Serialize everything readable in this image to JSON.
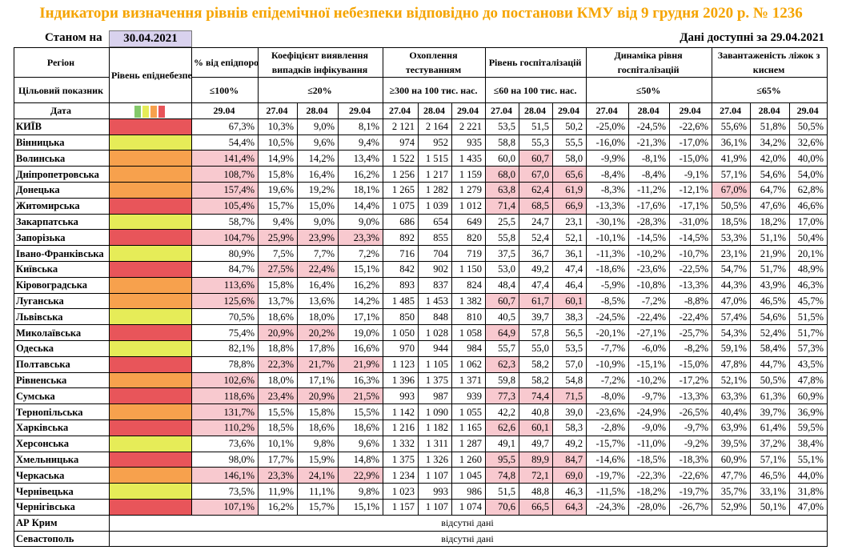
{
  "title": "Індикатори визначення рівнів епідемічної небезпеки відповідно до постанови КМУ від 9 грудня 2020 р. № 1236",
  "state_label": "Станом на",
  "state_date": "30.04.2021",
  "avail_label": "Дані доступні за",
  "avail_date": "29.04.2021",
  "headers": {
    "region": "Регіон",
    "target": "Цільовий показник",
    "date": "Дата",
    "level": "Рівень епіднебезпеки",
    "pct": "% від епідпорогу",
    "coef": "Коефіцієнт виявлення випадків інфікування",
    "test": "Охоплення тестуванням",
    "hosp": "Рівень госпіталізацій",
    "dyn": "Динаміка рівня госпіталізацій",
    "beds": "Завантаженість ліжок з киснем",
    "t_pct": "≤100%",
    "t_coef": "≤20%",
    "t_test": "≥300 на 100 тис. нас.",
    "t_hosp": "≤60 на 100 тис. нас.",
    "t_dyn": "≤50%",
    "t_beds": "≤65%",
    "d_pct": "29.04",
    "dates": [
      "27.04",
      "28.04",
      "29.04"
    ]
  },
  "level_colors": {
    "red": "#e8555a",
    "orange": "#f7a14d",
    "yellow": "#e6ec58",
    "green": "#84c96a"
  },
  "rows": [
    {
      "name": "КИЇВ",
      "level": "red",
      "pct": "67,3%",
      "coef": [
        "10,3%",
        "9,0%",
        "8,1%"
      ],
      "test": [
        "2 121",
        "2 164",
        "2 221"
      ],
      "hosp": [
        "53,5",
        "51,5",
        "50,2"
      ],
      "dyn": [
        "-25,0%",
        "-24,5%",
        "-22,6%"
      ],
      "beds": [
        "55,6%",
        "51,8%",
        "50,5%"
      ]
    },
    {
      "name": "Вінницька",
      "level": "yellow",
      "pct": "54,4%",
      "coef": [
        "10,5%",
        "9,6%",
        "9,4%"
      ],
      "test": [
        "974",
        "952",
        "935"
      ],
      "hosp": [
        "58,8",
        "55,3",
        "55,5"
      ],
      "dyn": [
        "-16,0%",
        "-21,3%",
        "-17,0%"
      ],
      "beds": [
        "36,1%",
        "34,2%",
        "32,6%"
      ]
    },
    {
      "name": "Волинська",
      "level": "orange",
      "pct": "141,4%",
      "coef": [
        "14,9%",
        "14,2%",
        "13,4%"
      ],
      "test": [
        "1 522",
        "1 515",
        "1 435"
      ],
      "hosp": [
        "60,0",
        "60,7",
        "58,0"
      ],
      "dyn": [
        "-9,9%",
        "-8,1%",
        "-15,0%"
      ],
      "beds": [
        "41,9%",
        "42,0%",
        "40,0%"
      ]
    },
    {
      "name": "Дніпропетровська",
      "level": "orange",
      "pct": "108,7%",
      "coef": [
        "15,8%",
        "16,4%",
        "16,2%"
      ],
      "test": [
        "1 256",
        "1 217",
        "1 159"
      ],
      "hosp": [
        "68,0",
        "67,0",
        "65,6"
      ],
      "dyn": [
        "-8,4%",
        "-8,4%",
        "-9,1%"
      ],
      "beds": [
        "57,1%",
        "54,6%",
        "54,0%"
      ]
    },
    {
      "name": "Донецька",
      "level": "orange",
      "pct": "157,4%",
      "coef": [
        "19,6%",
        "19,2%",
        "18,1%"
      ],
      "test": [
        "1 265",
        "1 282",
        "1 279"
      ],
      "hosp": [
        "63,8",
        "62,4",
        "61,9"
      ],
      "dyn": [
        "-8,3%",
        "-11,2%",
        "-12,1%"
      ],
      "beds": [
        "67,0%",
        "64,7%",
        "62,8%"
      ]
    },
    {
      "name": "Житомирська",
      "level": "red",
      "pct": "105,4%",
      "coef": [
        "15,7%",
        "15,0%",
        "14,4%"
      ],
      "test": [
        "1 075",
        "1 039",
        "1 012"
      ],
      "hosp": [
        "71,4",
        "68,5",
        "66,9"
      ],
      "dyn": [
        "-13,3%",
        "-17,6%",
        "-17,1%"
      ],
      "beds": [
        "50,5%",
        "47,6%",
        "46,6%"
      ]
    },
    {
      "name": "Закарпатська",
      "level": "yellow",
      "pct": "58,7%",
      "coef": [
        "9,4%",
        "9,0%",
        "9,0%"
      ],
      "test": [
        "686",
        "654",
        "649"
      ],
      "hosp": [
        "25,5",
        "24,7",
        "23,1"
      ],
      "dyn": [
        "-30,1%",
        "-28,3%",
        "-31,0%"
      ],
      "beds": [
        "18,5%",
        "18,2%",
        "17,0%"
      ]
    },
    {
      "name": "Запорізька",
      "level": "red",
      "pct": "104,7%",
      "coef": [
        "25,9%",
        "23,9%",
        "23,3%"
      ],
      "test": [
        "892",
        "855",
        "820"
      ],
      "hosp": [
        "55,8",
        "52,4",
        "52,1"
      ],
      "dyn": [
        "-10,1%",
        "-14,5%",
        "-14,5%"
      ],
      "beds": [
        "53,3%",
        "51,1%",
        "50,4%"
      ]
    },
    {
      "name": "Івано-Франківська",
      "level": "yellow",
      "pct": "80,9%",
      "coef": [
        "7,5%",
        "7,7%",
        "7,2%"
      ],
      "test": [
        "716",
        "704",
        "719"
      ],
      "hosp": [
        "37,5",
        "36,7",
        "36,1"
      ],
      "dyn": [
        "-11,3%",
        "-10,2%",
        "-10,7%"
      ],
      "beds": [
        "23,1%",
        "21,9%",
        "20,1%"
      ]
    },
    {
      "name": "Київська",
      "level": "red",
      "pct": "84,7%",
      "coef": [
        "27,5%",
        "22,4%",
        "15,1%"
      ],
      "test": [
        "842",
        "902",
        "1 150"
      ],
      "hosp": [
        "53,0",
        "49,2",
        "47,4"
      ],
      "dyn": [
        "-18,6%",
        "-23,6%",
        "-22,5%"
      ],
      "beds": [
        "54,7%",
        "51,7%",
        "48,9%"
      ]
    },
    {
      "name": "Кіровоградська",
      "level": "orange",
      "pct": "113,6%",
      "coef": [
        "15,8%",
        "16,4%",
        "16,2%"
      ],
      "test": [
        "893",
        "837",
        "824"
      ],
      "hosp": [
        "48,4",
        "47,4",
        "46,4"
      ],
      "dyn": [
        "-5,9%",
        "-10,8%",
        "-13,3%"
      ],
      "beds": [
        "44,3%",
        "43,9%",
        "46,3%"
      ]
    },
    {
      "name": "Луганська",
      "level": "orange",
      "pct": "125,6%",
      "coef": [
        "13,7%",
        "13,6%",
        "14,2%"
      ],
      "test": [
        "1 485",
        "1 453",
        "1 382"
      ],
      "hosp": [
        "60,7",
        "61,7",
        "60,1"
      ],
      "dyn": [
        "-8,5%",
        "-7,2%",
        "-8,8%"
      ],
      "beds": [
        "47,0%",
        "46,5%",
        "45,7%"
      ]
    },
    {
      "name": "Львівська",
      "level": "yellow",
      "pct": "70,5%",
      "coef": [
        "18,6%",
        "18,0%",
        "17,1%"
      ],
      "test": [
        "850",
        "848",
        "810"
      ],
      "hosp": [
        "40,5",
        "39,7",
        "38,3"
      ],
      "dyn": [
        "-24,5%",
        "-22,4%",
        "-22,4%"
      ],
      "beds": [
        "57,4%",
        "54,6%",
        "51,5%"
      ]
    },
    {
      "name": "Миколаївська",
      "level": "red",
      "pct": "75,4%",
      "coef": [
        "20,9%",
        "20,2%",
        "19,0%"
      ],
      "test": [
        "1 050",
        "1 028",
        "1 058"
      ],
      "hosp": [
        "64,9",
        "57,8",
        "56,5"
      ],
      "dyn": [
        "-20,1%",
        "-27,1%",
        "-25,7%"
      ],
      "beds": [
        "54,3%",
        "52,4%",
        "51,7%"
      ]
    },
    {
      "name": "Одеська",
      "level": "yellow",
      "pct": "82,1%",
      "coef": [
        "18,8%",
        "17,8%",
        "16,6%"
      ],
      "test": [
        "970",
        "944",
        "984"
      ],
      "hosp": [
        "55,7",
        "55,0",
        "53,5"
      ],
      "dyn": [
        "-7,7%",
        "-6,0%",
        "-8,2%"
      ],
      "beds": [
        "59,1%",
        "58,4%",
        "57,3%"
      ]
    },
    {
      "name": "Полтавська",
      "level": "red",
      "pct": "78,8%",
      "coef": [
        "22,3%",
        "21,7%",
        "21,9%"
      ],
      "test": [
        "1 123",
        "1 105",
        "1 062"
      ],
      "hosp": [
        "62,3",
        "58,2",
        "57,0"
      ],
      "dyn": [
        "-10,9%",
        "-15,1%",
        "-15,0%"
      ],
      "beds": [
        "47,8%",
        "44,7%",
        "43,5%"
      ]
    },
    {
      "name": "Рівненська",
      "level": "orange",
      "pct": "102,6%",
      "coef": [
        "18,0%",
        "17,1%",
        "16,3%"
      ],
      "test": [
        "1 396",
        "1 375",
        "1 371"
      ],
      "hosp": [
        "59,8",
        "58,2",
        "54,8"
      ],
      "dyn": [
        "-7,2%",
        "-10,2%",
        "-17,2%"
      ],
      "beds": [
        "52,1%",
        "50,5%",
        "47,8%"
      ]
    },
    {
      "name": "Сумська",
      "level": "red",
      "pct": "118,6%",
      "coef": [
        "23,4%",
        "20,9%",
        "21,5%"
      ],
      "test": [
        "993",
        "987",
        "939"
      ],
      "hosp": [
        "77,3",
        "74,4",
        "71,5"
      ],
      "dyn": [
        "-8,0%",
        "-9,7%",
        "-13,3%"
      ],
      "beds": [
        "63,3%",
        "61,3%",
        "60,9%"
      ]
    },
    {
      "name": "Тернопільська",
      "level": "orange",
      "pct": "131,7%",
      "coef": [
        "15,5%",
        "15,8%",
        "15,5%"
      ],
      "test": [
        "1 142",
        "1 090",
        "1 055"
      ],
      "hosp": [
        "42,2",
        "40,8",
        "39,0"
      ],
      "dyn": [
        "-23,6%",
        "-24,9%",
        "-26,5%"
      ],
      "beds": [
        "40,4%",
        "39,7%",
        "36,9%"
      ]
    },
    {
      "name": "Харківська",
      "level": "red",
      "pct": "110,2%",
      "coef": [
        "18,5%",
        "18,6%",
        "18,6%"
      ],
      "test": [
        "1 216",
        "1 182",
        "1 165"
      ],
      "hosp": [
        "62,6",
        "60,1",
        "58,3"
      ],
      "dyn": [
        "-2,8%",
        "-9,0%",
        "-9,7%"
      ],
      "beds": [
        "63,9%",
        "61,4%",
        "59,5%"
      ]
    },
    {
      "name": "Херсонська",
      "level": "yellow",
      "pct": "73,6%",
      "coef": [
        "10,1%",
        "9,8%",
        "9,6%"
      ],
      "test": [
        "1 332",
        "1 311",
        "1 287"
      ],
      "hosp": [
        "49,1",
        "49,7",
        "49,2"
      ],
      "dyn": [
        "-15,7%",
        "-11,0%",
        "-9,2%"
      ],
      "beds": [
        "39,5%",
        "37,2%",
        "38,4%"
      ]
    },
    {
      "name": "Хмельницька",
      "level": "red",
      "pct": "98,0%",
      "coef": [
        "17,7%",
        "15,9%",
        "14,8%"
      ],
      "test": [
        "1 375",
        "1 326",
        "1 260"
      ],
      "hosp": [
        "95,5",
        "89,9",
        "84,7"
      ],
      "dyn": [
        "-14,6%",
        "-18,5%",
        "-18,3%"
      ],
      "beds": [
        "60,9%",
        "57,1%",
        "55,1%"
      ]
    },
    {
      "name": "Черкаська",
      "level": "orange",
      "pct": "146,1%",
      "coef": [
        "23,3%",
        "24,1%",
        "22,9%"
      ],
      "test": [
        "1 234",
        "1 107",
        "1 045"
      ],
      "hosp": [
        "74,8",
        "72,1",
        "69,0"
      ],
      "dyn": [
        "-19,7%",
        "-22,3%",
        "-22,6%"
      ],
      "beds": [
        "47,7%",
        "46,5%",
        "44,0%"
      ]
    },
    {
      "name": "Чернівецька",
      "level": "yellow",
      "pct": "73,5%",
      "coef": [
        "11,9%",
        "11,1%",
        "9,8%"
      ],
      "test": [
        "1 023",
        "993",
        "986"
      ],
      "hosp": [
        "51,5",
        "48,8",
        "46,3"
      ],
      "dyn": [
        "-11,5%",
        "-18,2%",
        "-19,7%"
      ],
      "beds": [
        "35,7%",
        "33,1%",
        "31,8%"
      ]
    },
    {
      "name": "Чернігівська",
      "level": "red",
      "pct": "107,1%",
      "coef": [
        "16,2%",
        "15,7%",
        "15,1%"
      ],
      "test": [
        "1 157",
        "1 107",
        "1 074"
      ],
      "hosp": [
        "70,6",
        "66,5",
        "64,3"
      ],
      "dyn": [
        "-24,3%",
        "-28,0%",
        "-26,7%"
      ],
      "beds": [
        "52,9%",
        "50,1%",
        "47,0%"
      ]
    }
  ],
  "nodata_rows": [
    {
      "name": "АР Крим",
      "text": "відсутні дані"
    },
    {
      "name": "Севастополь",
      "text": "відсутні дані"
    }
  ],
  "thresholds": {
    "pct": 100,
    "coef": 20,
    "hosp": 60,
    "beds": 65
  }
}
